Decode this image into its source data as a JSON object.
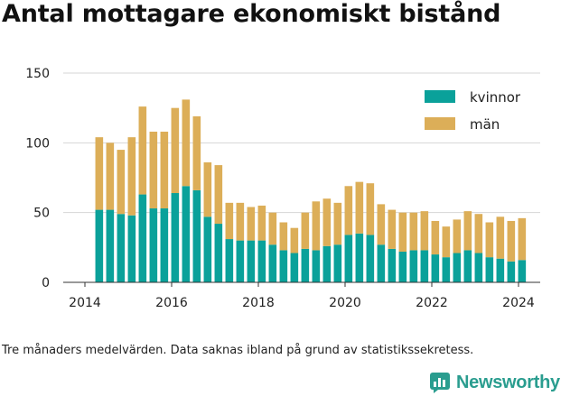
{
  "title": "Antal mottagare ekonomiskt bistånd",
  "caption": "Tre månaders medelvärden. Data saknas ibland på grund av statistikssekretess.",
  "brand": {
    "name": "Newsworthy",
    "icon": "newsworthy-logo-icon",
    "color": "#2a9d8f"
  },
  "colors": {
    "kvinnor": "#0aa19a",
    "man": "#dcae58"
  },
  "chart_data": {
    "type": "bar",
    "stacked": true,
    "x_ticks": [
      "2014",
      "2016",
      "2018",
      "2020",
      "2022",
      "2024"
    ],
    "x_tick_values": [
      2014,
      2016,
      2018,
      2020,
      2022,
      2024
    ],
    "xlim": [
      2013.5,
      2024.5
    ],
    "ylim": [
      0,
      150
    ],
    "y_ticks": [
      "0",
      "50",
      "100",
      "150"
    ],
    "y_tick_values": [
      0,
      50,
      100,
      150
    ],
    "grid": "horizontal",
    "legend_position": "top-right",
    "x": [
      2014.33,
      2014.58,
      2014.83,
      2015.08,
      2015.33,
      2015.58,
      2015.83,
      2016.08,
      2016.33,
      2016.58,
      2016.83,
      2017.08,
      2017.33,
      2017.58,
      2017.83,
      2018.08,
      2018.33,
      2018.58,
      2018.83,
      2019.08,
      2019.33,
      2019.58,
      2019.83,
      2020.08,
      2020.33,
      2020.58,
      2020.83,
      2021.08,
      2021.33,
      2021.58,
      2021.83,
      2022.08,
      2022.33,
      2022.58,
      2022.83,
      2023.08,
      2023.33,
      2023.58,
      2023.83,
      2024.08
    ],
    "series": [
      {
        "name": "kvinnor",
        "values": [
          52,
          52,
          49,
          48,
          63,
          53,
          53,
          64,
          69,
          66,
          47,
          42,
          31,
          30,
          30,
          30,
          27,
          23,
          21,
          24,
          23,
          26,
          27,
          34,
          35,
          34,
          27,
          24,
          22,
          23,
          23,
          20,
          18,
          21,
          23,
          21,
          18,
          17,
          15,
          16
        ]
      },
      {
        "name": "män",
        "values": [
          52,
          48,
          46,
          56,
          63,
          55,
          55,
          61,
          62,
          53,
          39,
          42,
          26,
          27,
          24,
          25,
          23,
          20,
          18,
          26,
          35,
          34,
          30,
          35,
          37,
          37,
          29,
          28,
          28,
          27,
          28,
          24,
          22,
          24,
          28,
          28,
          25,
          30,
          29,
          30
        ]
      }
    ]
  }
}
